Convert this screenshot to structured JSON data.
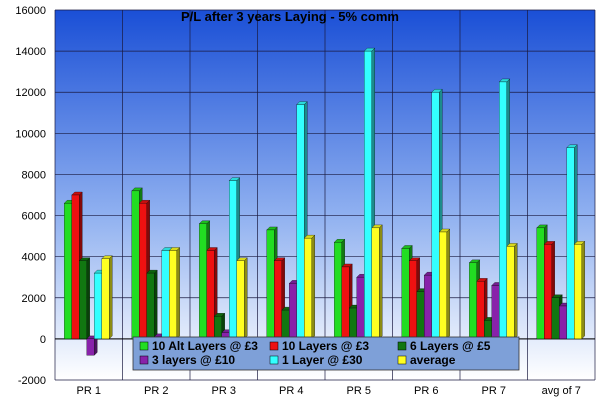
{
  "chart_data": {
    "type": "bar",
    "title": "P/L  after 3 years Laying  - 5% comm",
    "xlabel": "",
    "ylabel": "",
    "ylim": [
      -2000,
      16000
    ],
    "yticks": [
      -2000,
      0,
      2000,
      4000,
      6000,
      8000,
      10000,
      12000,
      14000,
      16000
    ],
    "grid": true,
    "legend_position": "bottom-center",
    "categories": [
      "PR 1",
      "PR 2",
      "PR 3",
      "PR 4",
      "PR 5",
      "PR 6",
      "PR 7",
      "avg of 7"
    ],
    "series": [
      {
        "name": "10 Alt Layers @ £3",
        "color": "#22dd22",
        "values": [
          6600,
          7200,
          5600,
          5300,
          4700,
          4400,
          3700,
          5400
        ]
      },
      {
        "name": "10 Layers @ £3",
        "color": "#ee1111",
        "values": [
          7000,
          6600,
          4300,
          3800,
          3500,
          3800,
          2800,
          4600
        ]
      },
      {
        "name": "6 Layers @ £5",
        "color": "#117711",
        "values": [
          3800,
          3200,
          1100,
          1400,
          1500,
          2300,
          900,
          2000
        ]
      },
      {
        "name": "3 layers @ £10",
        "color": "#8822aa",
        "values": [
          -800,
          100,
          300,
          2700,
          3000,
          3100,
          2600,
          1600
        ]
      },
      {
        "name": "1 Layer @ £30",
        "color": "#33ffff",
        "values": [
          3200,
          4300,
          7700,
          11400,
          14000,
          12000,
          12500,
          9300
        ]
      },
      {
        "name": "average",
        "color": "#ffff22",
        "values": [
          3900,
          4300,
          3800,
          4900,
          5400,
          5200,
          4500,
          4600
        ]
      }
    ]
  }
}
